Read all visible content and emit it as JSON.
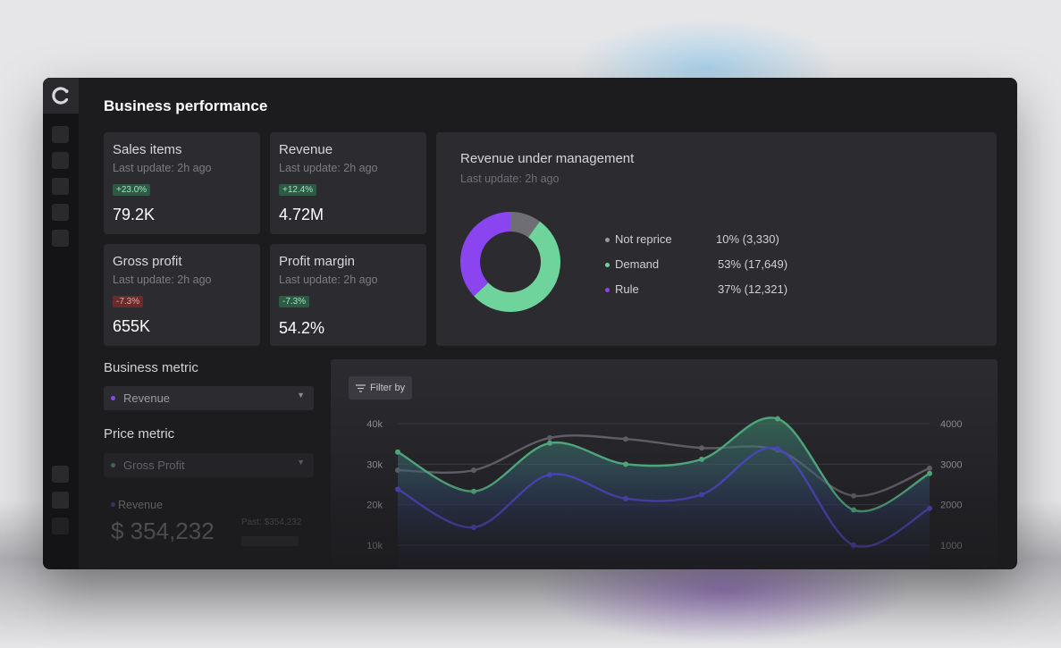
{
  "page_title": "Business performance",
  "kpis": [
    {
      "title": "Sales items",
      "updated": "Last update: 2h ago",
      "change": "+23.0%",
      "trend": "up",
      "value": "79.2K"
    },
    {
      "title": "Revenue",
      "updated": "Last update: 2h ago",
      "change": "+12.4%",
      "trend": "up",
      "value": "4.72M"
    },
    {
      "title": "Gross profit",
      "updated": "Last update: 2h ago",
      "change": "-7.3%",
      "trend": "down",
      "value": "655K"
    },
    {
      "title": "Profit margin",
      "updated": "Last update: 2h ago",
      "change": "-7.3%",
      "trend": "up",
      "value": "54.2%"
    }
  ],
  "revenue_under_management": {
    "title": "Revenue under management",
    "updated": "Last update: 2h ago",
    "legend": [
      {
        "label": "Not reprice",
        "value": "10% (3,330)",
        "color": "#9a9aa0"
      },
      {
        "label": "Demand",
        "value": "53% (17,649)",
        "color": "#6fd49b"
      },
      {
        "label": "Rule",
        "value": "37% (12,321)",
        "color": "#8b45f0"
      }
    ]
  },
  "controls": {
    "business_metric_label": "Business metric",
    "business_metric_value": "Revenue",
    "price_metric_label": "Price metric",
    "price_metric_value": "Gross Profit"
  },
  "revenue_summary": {
    "label": "Revenue",
    "value": "$ 354,232",
    "past": "Past: $354,232"
  },
  "chart": {
    "filter_label": "Filter by"
  },
  "chart_data": [
    {
      "type": "pie",
      "title": "Revenue under management",
      "categories": [
        "Not reprice",
        "Demand",
        "Rule"
      ],
      "values": [
        10,
        53,
        37
      ],
      "colors": [
        "#6e6e74",
        "#6fd49b",
        "#8b45f0"
      ],
      "donut": true
    },
    {
      "type": "line",
      "x": [
        1,
        2,
        3,
        4,
        5,
        6,
        7,
        8
      ],
      "left_ticks": [
        "40k",
        "30k",
        "20k",
        "10k"
      ],
      "right_ticks": [
        "4000",
        "3000",
        "2000",
        "1000"
      ],
      "ylim_left": [
        10000,
        40000
      ],
      "ylim_right": [
        1000,
        4000
      ],
      "grid": true,
      "series": [
        {
          "values": [
            28500,
            28500,
            36500,
            36200,
            34000,
            33500,
            22200,
            29000
          ],
          "color": "#5e5e66",
          "axis": "left"
        },
        {
          "values": [
            33000,
            23300,
            35200,
            30000,
            31200,
            41200,
            18700,
            27700
          ],
          "color": "#4fa57b",
          "axis": "left",
          "fill": true
        },
        {
          "values": [
            23800,
            14400,
            27400,
            21500,
            22500,
            33800,
            10000,
            19100
          ],
          "color": "#4a44b8",
          "axis": "left"
        }
      ]
    }
  ]
}
